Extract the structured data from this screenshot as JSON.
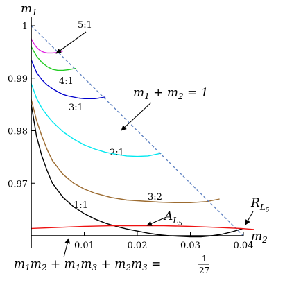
{
  "chart_data": {
    "type": "line",
    "xlim": [
      0,
      0.04
    ],
    "ylim": [
      0.96,
      1.0
    ],
    "x_ticks": [
      0.01,
      0.02,
      0.03,
      0.04
    ],
    "x_tick_labels": [
      "0.01",
      "0.02",
      "0.03",
      "0.04"
    ],
    "y_ticks": [
      0.97,
      0.98,
      0.99,
      1.0
    ],
    "y_tick_labels": [
      "0.97",
      "0.98",
      "0.99",
      "1"
    ],
    "axis_label_x": {
      "base": "m",
      "sub": "2"
    },
    "axis_label_y": {
      "base": "m",
      "sub": "1"
    },
    "series": [
      {
        "name": "5:1",
        "color": "#e020e0",
        "x": [
          0,
          0.0005,
          0.001,
          0.0015,
          0.002,
          0.0025,
          0.003,
          0.004,
          0.005,
          0.006
        ],
        "y": [
          0.9975,
          0.9966,
          0.9959,
          0.9954,
          0.9951,
          0.9949,
          0.9948,
          0.9948,
          0.9949,
          0.9952
        ]
      },
      {
        "name": "4:1",
        "color": "#22cc22",
        "x": [
          0,
          0.001,
          0.002,
          0.003,
          0.004,
          0.005,
          0.006,
          0.007,
          0.0085
        ],
        "y": [
          0.996,
          0.9942,
          0.993,
          0.9922,
          0.9917,
          0.9915,
          0.9915,
          0.9916,
          0.9919
        ]
      },
      {
        "name": "3:1",
        "color": "#0000cc",
        "x": [
          0,
          0.001,
          0.002,
          0.003,
          0.004,
          0.005,
          0.006,
          0.007,
          0.008,
          0.009,
          0.01,
          0.012,
          0.014
        ],
        "y": [
          0.9935,
          0.9911,
          0.9897,
          0.9887,
          0.988,
          0.9874,
          0.9869,
          0.9866,
          0.9864,
          0.9862,
          0.9861,
          0.9861,
          0.9864
        ]
      },
      {
        "name": "2:1",
        "color": "#00e8f0",
        "x": [
          0,
          0.001,
          0.002,
          0.003,
          0.004,
          0.006,
          0.008,
          0.01,
          0.012,
          0.014,
          0.016,
          0.018,
          0.02,
          0.022,
          0.0245
        ],
        "y": [
          0.989,
          0.9862,
          0.9843,
          0.9829,
          0.9817,
          0.9798,
          0.9784,
          0.9773,
          0.9765,
          0.9759,
          0.9755,
          0.9752,
          0.9751,
          0.9752,
          0.9757
        ]
      },
      {
        "name": "3:2",
        "color": "#9c6b30",
        "x": [
          0,
          0.001,
          0.002,
          0.003,
          0.004,
          0.006,
          0.008,
          0.01,
          0.012,
          0.015,
          0.018,
          0.021,
          0.024,
          0.027,
          0.03,
          0.033,
          0.0355
        ],
        "y": [
          0.986,
          0.982,
          0.979,
          0.9764,
          0.9743,
          0.9717,
          0.97,
          0.9689,
          0.9681,
          0.9673,
          0.9668,
          0.9666,
          0.9664,
          0.9663,
          0.9663,
          0.9665,
          0.967
        ]
      },
      {
        "name": "1:1",
        "color": "#000000",
        "x": [
          0,
          0.001,
          0.002,
          0.003,
          0.004,
          0.006,
          0.008,
          0.01,
          0.012,
          0.014,
          0.016,
          0.018,
          0.02,
          0.022,
          0.024,
          0.026,
          0.028,
          0.03,
          0.032,
          0.034,
          0.036,
          0.038,
          0.04
        ],
        "y": [
          0.985,
          0.979,
          0.9752,
          0.9724,
          0.97,
          0.9673,
          0.9655,
          0.9642,
          0.9632,
          0.9624,
          0.9618,
          0.9613,
          0.9609,
          0.9605,
          0.9602,
          0.96,
          0.9599,
          0.9598,
          0.9598,
          0.96,
          0.9603,
          0.9608,
          0.9614
        ]
      },
      {
        "name": "m_1 + m_2 = 1",
        "color": "#5b7fc0",
        "dashed": true,
        "x": [
          0,
          0.04
        ],
        "y": [
          1.0,
          0.96
        ]
      },
      {
        "name": "m1m2+m1m3+m2m3=1/27",
        "color": "#ee1111",
        "x": [
          0,
          0.005,
          0.01,
          0.015,
          0.02,
          0.025,
          0.03,
          0.035,
          0.0395,
          0.042
        ],
        "y": [
          0.9614,
          0.9616,
          0.9618,
          0.9619,
          0.9619,
          0.9619,
          0.9618,
          0.9616,
          0.9614,
          0.9612
        ]
      }
    ],
    "annotations": {
      "r51": "5:1",
      "r41": "4:1",
      "r31": "3:1",
      "r21": "2:1",
      "r32": "3:2",
      "r11": "1:1",
      "line_label": "m_1 + m_2 = 1",
      "AL5": {
        "base": "A",
        "sub": "L",
        "subsub": "5"
      },
      "RL5": {
        "base": "R",
        "sub": "L",
        "subsub": "5"
      },
      "eq": {
        "lhs": "m_1m_2 + m_1m_3 + m_2m_3 =",
        "num": "1",
        "den": "27"
      }
    }
  }
}
